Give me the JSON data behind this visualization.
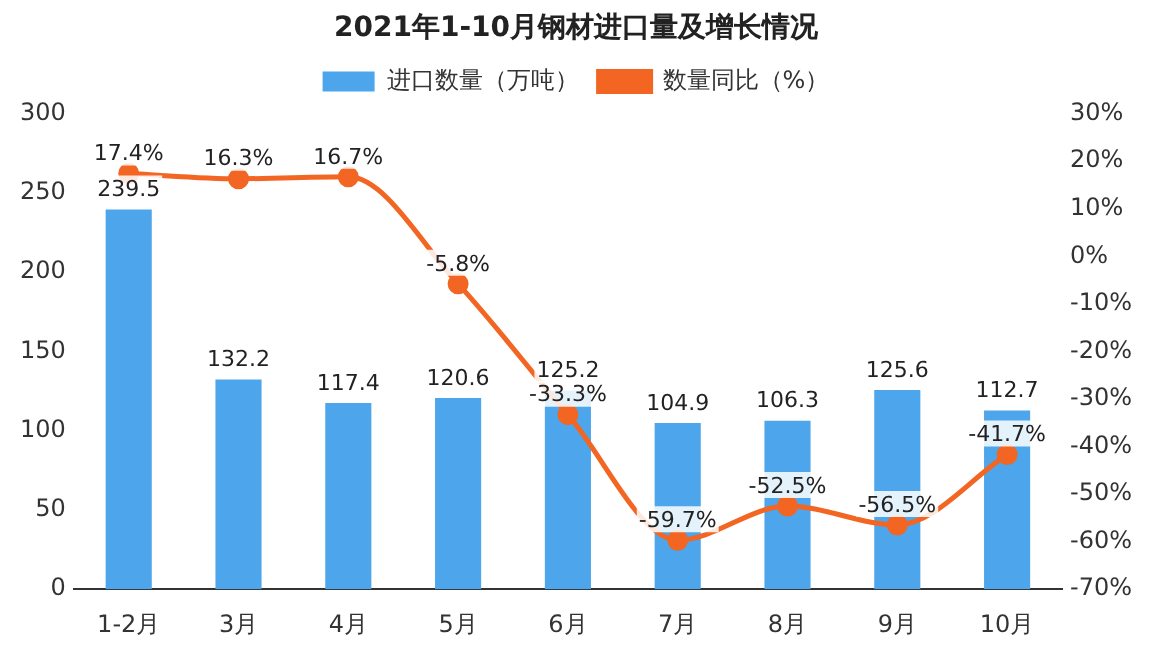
{
  "chart_data": {
    "type": "bar",
    "title": "2021年1-10月钢材进口量及增长情况",
    "categories": [
      "1-2月",
      "3月",
      "4月",
      "5月",
      "6月",
      "7月",
      "8月",
      "9月",
      "10月"
    ],
    "series": [
      {
        "name": "进口数量（万吨）",
        "color": "#4da6ec",
        "values": [
          239.5,
          132.2,
          117.4,
          120.6,
          125.2,
          104.9,
          106.3,
          125.6,
          112.7
        ],
        "value_labels": [
          "239.5",
          "132.2",
          "117.4",
          "120.6",
          "125.2",
          "104.9",
          "106.3",
          "125.6",
          "112.7"
        ]
      },
      {
        "name": "数量同比（%）",
        "type": "line",
        "axis": "y2",
        "color": "#f26522",
        "values": [
          17.4,
          16.3,
          16.7,
          -5.8,
          -33.3,
          -59.7,
          -52.5,
          -56.5,
          -41.7
        ],
        "value_labels": [
          "17.4%",
          "16.3%",
          "16.7%",
          "-5.8%",
          "-33.3%",
          "-59.7%",
          "-52.5%",
          "-56.5%",
          "-41.7%"
        ]
      }
    ],
    "ylim": [
      0,
      300
    ],
    "yticks": [
      0,
      50,
      100,
      150,
      200,
      250,
      300
    ],
    "y2lim": [
      -70,
      30
    ],
    "y2ticks": [
      {
        "value": -70,
        "label": "-70%"
      },
      {
        "value": -60,
        "label": "-60%"
      },
      {
        "value": -50,
        "label": "-50%"
      },
      {
        "value": -40,
        "label": "-40%"
      },
      {
        "value": -30,
        "label": "-30%"
      },
      {
        "value": -20,
        "label": "-20%"
      },
      {
        "value": -10,
        "label": "-10%"
      },
      {
        "value": 0,
        "label": "0%"
      },
      {
        "value": 10,
        "label": "10%"
      },
      {
        "value": 20,
        "label": "20%"
      },
      {
        "value": 30,
        "label": "30%"
      }
    ],
    "legend": "top",
    "marker": "circle",
    "grid": false
  }
}
